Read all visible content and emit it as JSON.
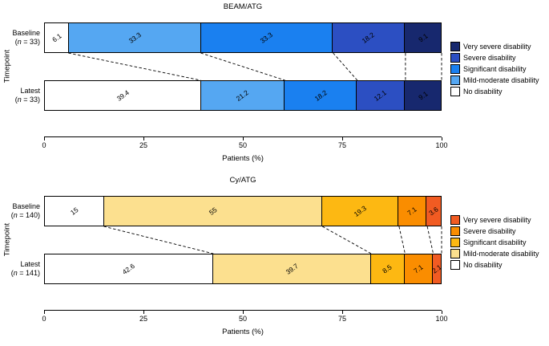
{
  "chart_data": [
    {
      "type": "bar",
      "variant": "horizontal-stacked-percent",
      "title": "BEAM/ATG",
      "xlabel": "Patients (%)",
      "ylabel": "Timepoint",
      "xlim": [
        0,
        100
      ],
      "x_ticks": [
        0,
        25,
        50,
        75,
        100
      ],
      "grid": false,
      "legend_position": "right",
      "series": [
        "No disability",
        "Mild-moderate disability",
        "Significant disability",
        "Severe disability",
        "Very severe disability"
      ],
      "series_colors": [
        "#ffffff",
        "#55a7f2",
        "#1a80f0",
        "#2c4fc2",
        "#17286e"
      ],
      "legend_order": [
        "Very severe disability",
        "Severe disability",
        "Significant disability",
        "Mild-moderate disability",
        "No disability"
      ],
      "rows": [
        {
          "label": "Baseline",
          "n_label": "(n = 33)",
          "values": [
            6.1,
            33.3,
            33.3,
            18.2,
            9.1
          ]
        },
        {
          "label": "Latest",
          "n_label": "(n = 33)",
          "values": [
            39.4,
            21.2,
            18.2,
            12.1,
            9.1
          ]
        }
      ]
    },
    {
      "type": "bar",
      "variant": "horizontal-stacked-percent",
      "title": "Cy/ATG",
      "xlabel": "Patients (%)",
      "ylabel": "Timepoint",
      "xlim": [
        0,
        100
      ],
      "x_ticks": [
        0,
        25,
        50,
        75,
        100
      ],
      "grid": false,
      "legend_position": "right",
      "series": [
        "No disability",
        "Mild-moderate disability",
        "Significant disability",
        "Severe disability",
        "Very severe disability"
      ],
      "series_colors": [
        "#ffffff",
        "#fce08f",
        "#fdb812",
        "#fa8d00",
        "#f15b22"
      ],
      "legend_order": [
        "Very severe disability",
        "Severe disability",
        "Significant disability",
        "Mild-moderate disability",
        "No disability"
      ],
      "rows": [
        {
          "label": "Baseline",
          "n_label": "(n = 140)",
          "values": [
            15,
            55,
            19.3,
            7.1,
            3.6
          ]
        },
        {
          "label": "Latest",
          "n_label": "(n = 141)",
          "values": [
            42.6,
            39.7,
            8.5,
            7.1,
            2.1
          ]
        }
      ]
    }
  ]
}
